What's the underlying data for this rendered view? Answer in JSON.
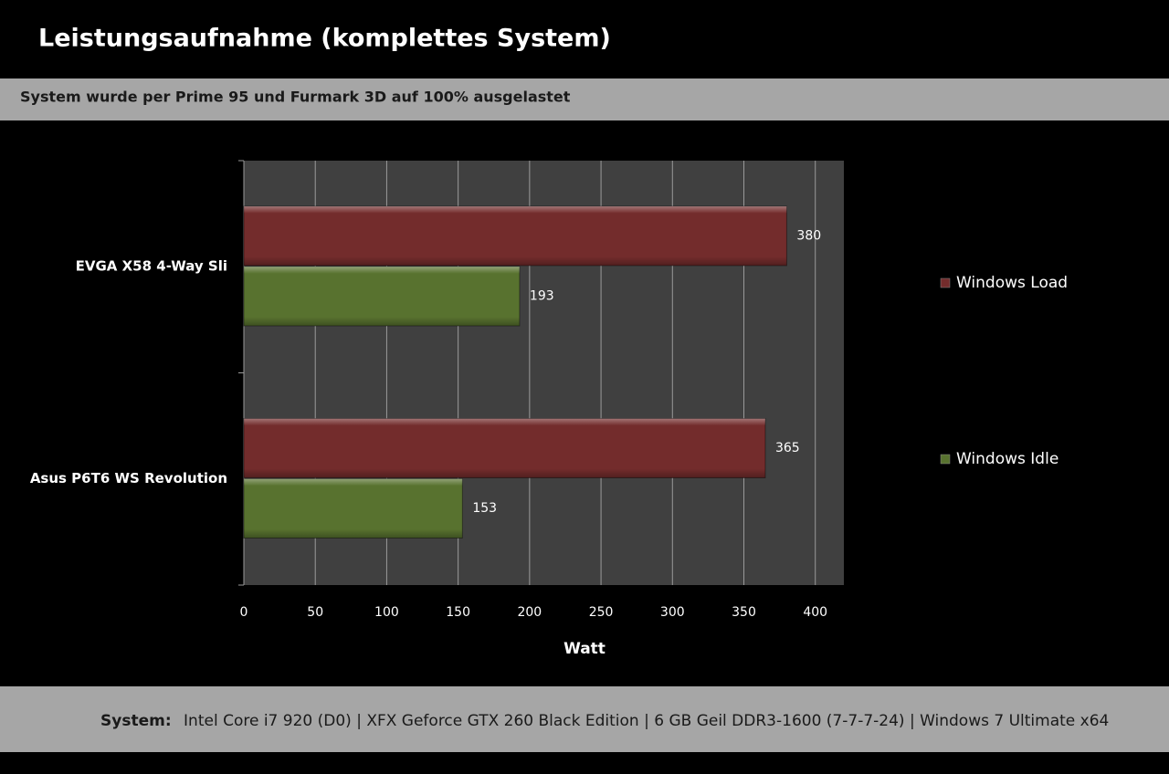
{
  "chart_data": {
    "type": "bar",
    "orientation": "horizontal",
    "title": "Leistungsaufnahme (komplettes System)",
    "subtitle": "System wurde per Prime 95 und Furmark 3D auf 100% ausgelastet",
    "categories": [
      "EVGA X58 4-Way Sli",
      "Asus P6T6 WS Revolution"
    ],
    "series": [
      {
        "name": "Windows Load",
        "color": "#732c2c",
        "values": [
          380,
          365
        ]
      },
      {
        "name": "Windows Idle",
        "color": "#58722f",
        "values": [
          193,
          153
        ]
      }
    ],
    "xlim": [
      0,
      420
    ],
    "xticks": [
      0,
      50,
      100,
      150,
      200,
      250,
      300,
      350,
      400
    ],
    "xlabel": "Watt",
    "grid": true,
    "legend": "right",
    "footer_label": "System:",
    "footer": "Intel Core i7 920  (D0)  |  XFX Geforce GTX 260  Black Edition  |  6 GB Geil DDR3-1600  (7-7-7-24)  |  Windows 7  Ultimate  x64"
  }
}
